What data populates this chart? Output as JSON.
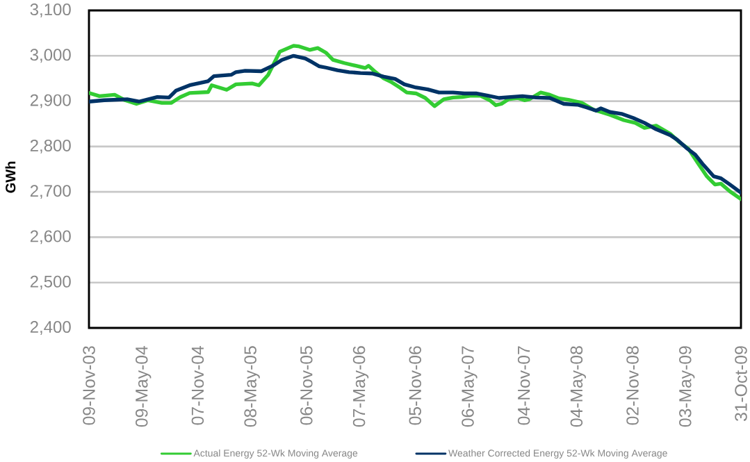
{
  "chart_data": {
    "type": "line",
    "ylabel": "GWh",
    "xlim": [
      "2003-11-09",
      "2009-10-31"
    ],
    "xticks": [
      {
        "value": "2003-11-09",
        "label": "09-Nov-03"
      },
      {
        "value": "2004-05-09",
        "label": "09-May-04"
      },
      {
        "value": "2004-11-07",
        "label": "07-Nov-04"
      },
      {
        "value": "2005-05-08",
        "label": "08-May-05"
      },
      {
        "value": "2005-11-06",
        "label": "06-Nov-05"
      },
      {
        "value": "2006-05-07",
        "label": "07-May-06"
      },
      {
        "value": "2006-11-05",
        "label": "05-Nov-06"
      },
      {
        "value": "2007-05-06",
        "label": "06-May-07"
      },
      {
        "value": "2007-11-04",
        "label": "04-Nov-07"
      },
      {
        "value": "2008-05-04",
        "label": "04-May-08"
      },
      {
        "value": "2008-11-02",
        "label": "02-Nov-08"
      },
      {
        "value": "2009-05-03",
        "label": "03-May-09"
      },
      {
        "value": "2009-10-31",
        "label": "31-Oct-09"
      }
    ],
    "ylim": [
      2400,
      3100
    ],
    "yticks": [
      {
        "value": 2400,
        "label": "2,400"
      },
      {
        "value": 2500,
        "label": "2,500"
      },
      {
        "value": 2600,
        "label": "2,600"
      },
      {
        "value": 2700,
        "label": "2,700"
      },
      {
        "value": 2800,
        "label": "2,800"
      },
      {
        "value": 2900,
        "label": "2,900"
      },
      {
        "value": 3000,
        "label": "3,000"
      },
      {
        "value": 3100,
        "label": "3,100"
      }
    ],
    "grid": "y",
    "legend": "bottom",
    "series": [
      {
        "name": "Actual Energy 52-Wk Moving Average",
        "color": "#33cc33",
        "x": [
          "2003-11-09",
          "2003-12-14",
          "2004-02-03",
          "2004-03-09",
          "2004-04-16",
          "2004-05-25",
          "2004-07-10",
          "2004-08-10",
          "2004-09-10",
          "2004-10-11",
          "2004-12-12",
          "2004-12-24",
          "2005-02-12",
          "2005-03-15",
          "2005-05-08",
          "2005-05-31",
          "2005-07-01",
          "2005-08-09",
          "2005-09-24",
          "2005-10-10",
          "2005-11-17",
          "2005-12-14",
          "2006-01-10",
          "2006-02-03",
          "2006-03-13",
          "2006-04-21",
          "2006-05-22",
          "2006-06-02",
          "2006-06-22",
          "2006-07-23",
          "2006-08-15",
          "2006-09-15",
          "2006-10-08",
          "2006-11-08",
          "2006-12-09",
          "2007-01-09",
          "2007-02-09",
          "2007-03-12",
          "2007-04-12",
          "2007-05-12",
          "2007-06-12",
          "2007-07-13",
          "2007-08-02",
          "2007-08-21",
          "2007-09-13",
          "2007-10-14",
          "2007-11-06",
          "2007-11-22",
          "2007-12-30",
          "2008-01-30",
          "2008-03-01",
          "2008-04-01",
          "2008-05-17",
          "2008-06-25",
          "2008-08-18",
          "2008-10-04",
          "2008-11-11",
          "2008-12-12",
          "2009-01-20",
          "2009-03-08",
          "2009-04-07",
          "2009-05-08",
          "2009-06-08",
          "2009-07-09",
          "2009-08-05",
          "2009-08-25",
          "2009-09-24",
          "2009-10-31"
        ],
        "values": [
          2918,
          2911,
          2914,
          2902,
          2894,
          2902,
          2896,
          2896,
          2909,
          2918,
          2920,
          2935,
          2925,
          2937,
          2939,
          2935,
          2958,
          3009,
          3022,
          3021,
          3013,
          3017,
          3007,
          2991,
          2984,
          2978,
          2973,
          2978,
          2966,
          2950,
          2943,
          2930,
          2919,
          2917,
          2907,
          2889,
          2904,
          2908,
          2909,
          2912,
          2912,
          2902,
          2891,
          2894,
          2904,
          2907,
          2902,
          2904,
          2919,
          2914,
          2906,
          2903,
          2896,
          2881,
          2870,
          2858,
          2852,
          2841,
          2846,
          2828,
          2810,
          2795,
          2764,
          2734,
          2716,
          2718,
          2701,
          2684
        ]
      },
      {
        "name": "Weather Corrected Energy 52-Wk Moving Average",
        "color": "#003366",
        "x": [
          "2003-11-09",
          "2003-12-30",
          "2004-03-16",
          "2004-04-24",
          "2004-06-25",
          "2004-08-03",
          "2004-08-26",
          "2004-10-11",
          "2004-12-12",
          "2004-12-31",
          "2005-02-27",
          "2005-03-15",
          "2005-04-15",
          "2005-06-08",
          "2005-07-16",
          "2005-08-16",
          "2005-09-24",
          "2005-11-02",
          "2005-11-25",
          "2005-12-18",
          "2006-01-10",
          "2006-02-18",
          "2006-03-29",
          "2006-05-06",
          "2006-06-14",
          "2006-07-23",
          "2006-08-30",
          "2006-09-30",
          "2006-11-08",
          "2006-12-17",
          "2007-01-24",
          "2007-03-12",
          "2007-04-19",
          "2007-05-28",
          "2007-07-06",
          "2007-08-13",
          "2007-09-21",
          "2007-10-30",
          "2007-12-15",
          "2008-01-30",
          "2008-03-17",
          "2008-05-02",
          "2008-06-02",
          "2008-07-03",
          "2008-07-19",
          "2008-08-18",
          "2008-09-26",
          "2008-11-04",
          "2008-12-12",
          "2009-01-20",
          "2009-03-08",
          "2009-03-31",
          "2009-05-01",
          "2009-05-31",
          "2009-06-24",
          "2009-08-01",
          "2009-08-25",
          "2009-09-24",
          "2009-10-31"
        ],
        "values": [
          2899,
          2902,
          2904,
          2899,
          2909,
          2908,
          2923,
          2935,
          2944,
          2955,
          2958,
          2964,
          2967,
          2966,
          2978,
          2991,
          3000,
          2994,
          2986,
          2977,
          2974,
          2968,
          2964,
          2962,
          2961,
          2954,
          2949,
          2937,
          2930,
          2926,
          2919,
          2919,
          2917,
          2917,
          2912,
          2907,
          2909,
          2911,
          2908,
          2907,
          2894,
          2892,
          2886,
          2879,
          2884,
          2876,
          2872,
          2863,
          2852,
          2838,
          2825,
          2815,
          2797,
          2782,
          2762,
          2734,
          2730,
          2716,
          2698
        ]
      }
    ]
  }
}
